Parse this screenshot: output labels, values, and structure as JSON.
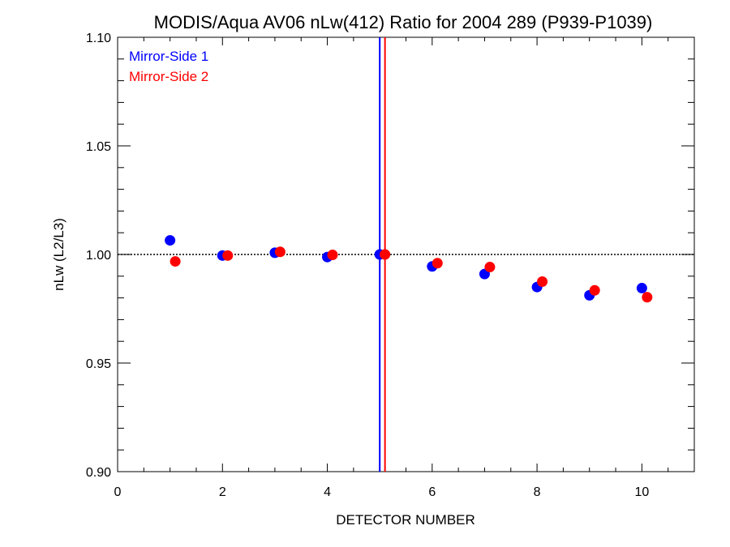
{
  "chart_data": {
    "type": "scatter",
    "title": "MODIS/Aqua AV06 nLw(412) Ratio for 2004 289 (P939-P1039)",
    "xlabel": "DETECTOR NUMBER",
    "ylabel": "nLw (L2/L3)",
    "xlim": [
      0,
      11
    ],
    "ylim": [
      0.9,
      1.1
    ],
    "x_ticks": [
      0,
      2,
      4,
      6,
      8,
      10
    ],
    "y_ticks": [
      0.9,
      0.95,
      1.0,
      1.05,
      1.1
    ],
    "x_tick_labels": [
      "0",
      "2",
      "4",
      "6",
      "8",
      "10"
    ],
    "y_tick_labels": [
      "0.90",
      "0.95",
      "1.00",
      "1.05",
      "1.10"
    ],
    "reference_line_y": 1.0,
    "vertical_lines": [
      {
        "x": 5.0,
        "color": "#0000ff"
      },
      {
        "x": 5.1,
        "color": "#ff0000"
      }
    ],
    "legend_position": "top-left",
    "series": [
      {
        "name": "Mirror-Side 1",
        "color": "#0000ff",
        "x": [
          1,
          2,
          3,
          4,
          5,
          6,
          7,
          8,
          9,
          10
        ],
        "values": [
          1.0065,
          0.9995,
          1.0008,
          0.9988,
          1.0,
          0.9945,
          0.991,
          0.985,
          0.9812,
          0.9845
        ]
      },
      {
        "name": "Mirror-Side 2",
        "color": "#ff0000",
        "x": [
          1.1,
          2.1,
          3.1,
          4.1,
          5.1,
          6.1,
          7.1,
          8.1,
          9.1,
          10.1
        ],
        "values": [
          0.9968,
          0.9995,
          1.0012,
          0.9998,
          1.0,
          0.996,
          0.9942,
          0.9875,
          0.9835,
          0.9803
        ]
      }
    ]
  }
}
